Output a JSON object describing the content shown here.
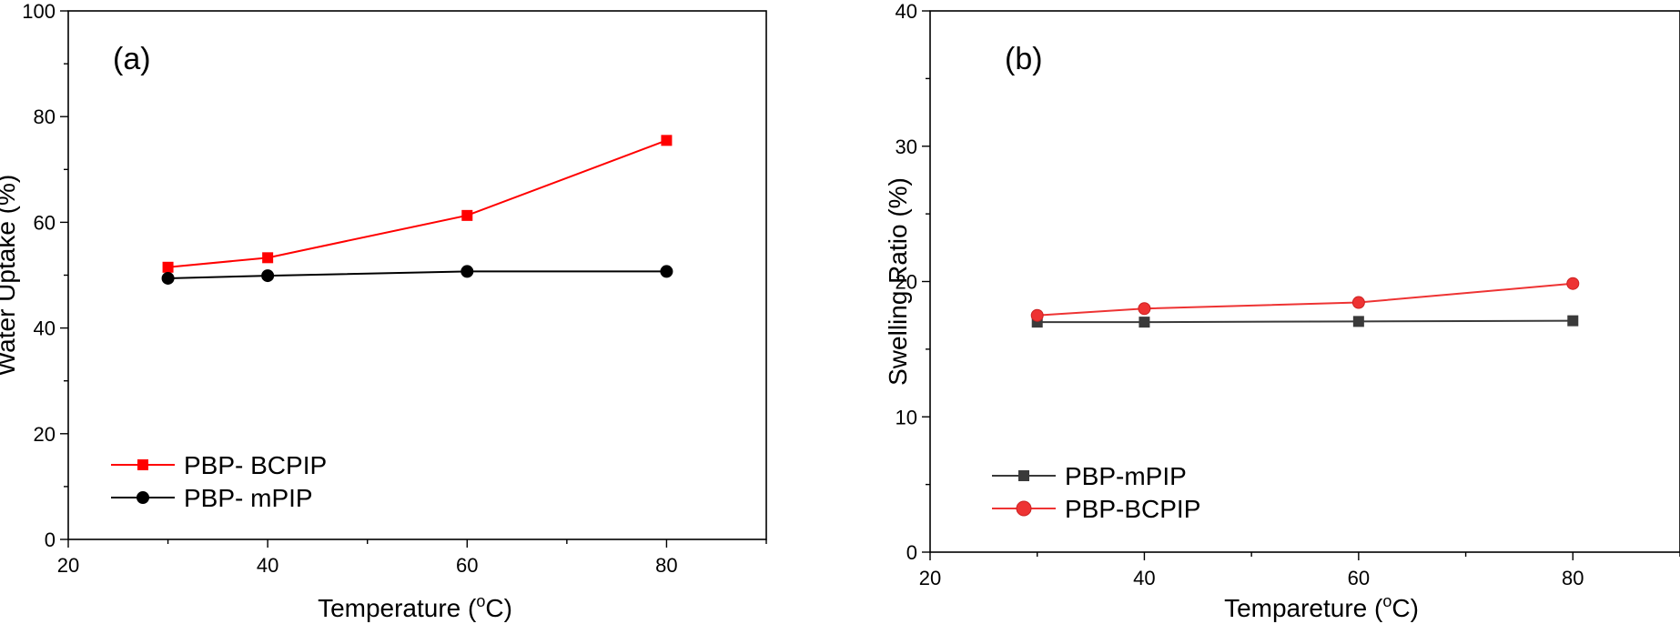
{
  "chart_data": [
    {
      "type": "line",
      "panel_label": "(a)",
      "xlabel": "Temperature (",
      "xlabel_sup": "o",
      "xlabel_tail": "C)",
      "ylabel": "Water Uptake (%)",
      "xlim": [
        20,
        90
      ],
      "ylim": [
        0,
        100
      ],
      "xticks": [
        20,
        40,
        60,
        80
      ],
      "yticks": [
        0,
        20,
        40,
        60,
        80,
        100
      ],
      "xtick_labels": [
        "20",
        "40",
        "60",
        "80"
      ],
      "ytick_labels": [
        "0",
        "20",
        "40",
        "60",
        "80",
        "100"
      ],
      "series": [
        {
          "name": "PBP- BCPIP",
          "color": "#ff0000",
          "marker": "square",
          "x": [
            30,
            40,
            60,
            80
          ],
          "y": [
            51.5,
            53.3,
            61.3,
            75.5
          ]
        },
        {
          "name": "PBP- mPIP",
          "color": "#000000",
          "marker": "circle",
          "x": [
            30,
            40,
            60,
            80
          ],
          "y": [
            49.4,
            49.9,
            50.7,
            50.7
          ]
        }
      ]
    },
    {
      "type": "line",
      "panel_label": "(b)",
      "xlabel": "Tempareture (",
      "xlabel_sup": "o",
      "xlabel_tail": "C)",
      "ylabel": "Swelling Ratio (%)",
      "xlim": [
        20,
        90
      ],
      "ylim": [
        0,
        40
      ],
      "xticks": [
        20,
        40,
        60,
        80
      ],
      "yticks": [
        0,
        10,
        20,
        30,
        40
      ],
      "xtick_labels": [
        "20",
        "40",
        "60",
        "80"
      ],
      "ytick_labels": [
        "0",
        "10",
        "20",
        "30",
        "40"
      ],
      "series": [
        {
          "name": "PBP-mPIP",
          "color": "#3a3a3a",
          "marker": "square",
          "x": [
            30,
            40,
            60,
            80
          ],
          "y": [
            17.0,
            17.0,
            17.05,
            17.1
          ]
        },
        {
          "name": "PBP-BCPIP",
          "color": "#ee3333",
          "marker": "circle",
          "x": [
            30,
            40,
            60,
            80
          ],
          "y": [
            17.5,
            18.0,
            18.45,
            19.85
          ]
        }
      ]
    }
  ]
}
